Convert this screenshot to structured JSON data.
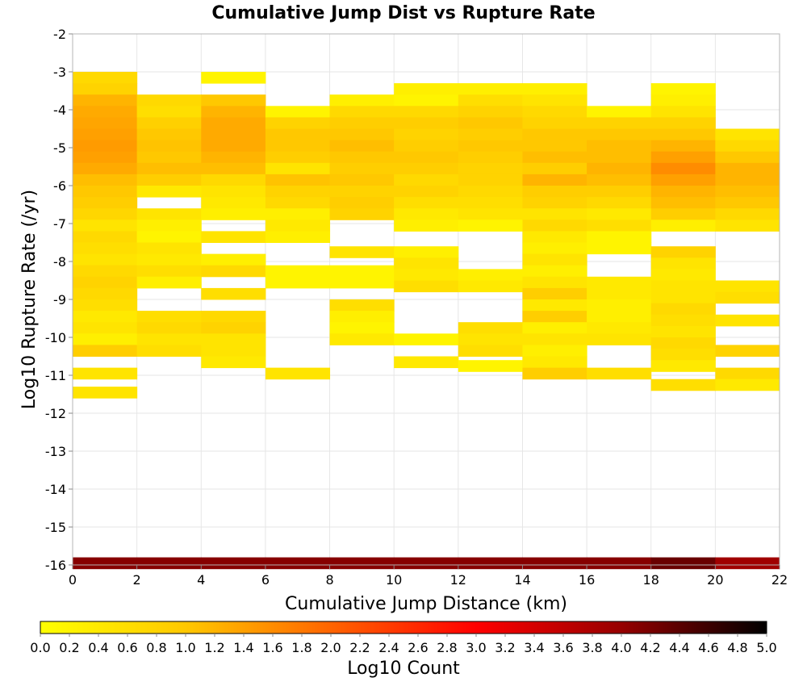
{
  "chart_data": {
    "type": "heatmap",
    "title": "Cumulative Jump Dist vs Rupture Rate",
    "xlabel": "Cumulative Jump Distance (km)",
    "ylabel": "Log10 Rupture Rate (/yr)",
    "xlim": [
      0,
      22
    ],
    "ylim": [
      -16,
      -2
    ],
    "x_ticks": [
      "0",
      "2",
      "4",
      "6",
      "8",
      "10",
      "12",
      "14",
      "16",
      "18",
      "20",
      "22"
    ],
    "y_ticks": [
      "-2",
      "-3",
      "-4",
      "-5",
      "-6",
      "-7",
      "-8",
      "-9",
      "-10",
      "-11",
      "-12",
      "-13",
      "-14",
      "-15",
      "-16"
    ],
    "grid": true,
    "x_bin_width": 2,
    "y_bin_height": 0.3,
    "x_bin_starts": [
      0,
      2,
      4,
      6,
      8,
      10,
      12,
      14,
      16,
      18,
      20
    ],
    "colorbar": {
      "label": "Log10 Count",
      "range": [
        0.0,
        5.0
      ],
      "ticks": [
        "0.0",
        "0.2",
        "0.4",
        "0.6",
        "0.8",
        "1.0",
        "1.2",
        "1.4",
        "1.6",
        "1.8",
        "2.0",
        "2.2",
        "2.4",
        "2.6",
        "2.8",
        "3.0",
        "3.2",
        "3.4",
        "3.6",
        "3.8",
        "4.0",
        "4.2",
        "4.4",
        "4.6",
        "4.8",
        "5.0"
      ],
      "colors": [
        "#ffff00",
        "#ffc800",
        "#ff6400",
        "#ff0000",
        "#960000",
        "#000000"
      ]
    },
    "columns": [
      {
        "x": 0,
        "cells": [
          [
            -3.15,
            0.7
          ],
          [
            -3.45,
            0.8
          ],
          [
            -3.75,
            1.2
          ],
          [
            -4.05,
            1.3
          ],
          [
            -4.35,
            1.35
          ],
          [
            -4.65,
            1.4
          ],
          [
            -4.95,
            1.45
          ],
          [
            -5.25,
            1.4
          ],
          [
            -5.55,
            1.3
          ],
          [
            -5.85,
            1.1
          ],
          [
            -6.15,
            1.0
          ],
          [
            -6.45,
            0.9
          ],
          [
            -6.75,
            0.75
          ],
          [
            -7.05,
            0.5
          ],
          [
            -7.35,
            0.7
          ],
          [
            -7.65,
            0.6
          ],
          [
            -7.95,
            0.5
          ],
          [
            -8.25,
            0.7
          ],
          [
            -8.55,
            0.8
          ],
          [
            -8.85,
            0.7
          ],
          [
            -9.15,
            0.6
          ],
          [
            -9.45,
            0.4
          ],
          [
            -9.75,
            0.5
          ],
          [
            -10.05,
            0.3
          ],
          [
            -10.35,
            0.9
          ],
          [
            -10.95,
            0.5
          ],
          [
            -11.45,
            0.5
          ],
          [
            -15.95,
            4.1
          ]
        ]
      },
      {
        "x": 2,
        "cells": [
          [
            -3.75,
            0.7
          ],
          [
            -4.05,
            0.6
          ],
          [
            -4.35,
            0.85
          ],
          [
            -4.65,
            1.0
          ],
          [
            -4.95,
            1.05
          ],
          [
            -5.25,
            1.0
          ],
          [
            -5.55,
            1.1
          ],
          [
            -5.85,
            0.9
          ],
          [
            -6.15,
            0.4
          ],
          [
            -6.75,
            0.5
          ],
          [
            -7.05,
            0.3
          ],
          [
            -7.35,
            0.2
          ],
          [
            -7.65,
            0.5
          ],
          [
            -7.95,
            0.4
          ],
          [
            -8.25,
            0.6
          ],
          [
            -8.55,
            0.3
          ],
          [
            -9.45,
            0.6
          ],
          [
            -9.75,
            0.7
          ],
          [
            -10.05,
            0.5
          ],
          [
            -10.35,
            0.6
          ],
          [
            -15.95,
            4.1
          ]
        ]
      },
      {
        "x": 4,
        "cells": [
          [
            -3.15,
            0.2
          ],
          [
            -3.75,
            1.0
          ],
          [
            -4.05,
            1.2
          ],
          [
            -4.35,
            1.3
          ],
          [
            -4.65,
            1.3
          ],
          [
            -4.95,
            1.3
          ],
          [
            -5.25,
            1.2
          ],
          [
            -5.55,
            1.1
          ],
          [
            -5.85,
            0.7
          ],
          [
            -6.15,
            0.5
          ],
          [
            -6.45,
            0.4
          ],
          [
            -6.75,
            0.3
          ],
          [
            -7.35,
            0.5
          ],
          [
            -7.95,
            0.3
          ],
          [
            -8.25,
            0.7
          ],
          [
            -8.85,
            0.6
          ],
          [
            -9.45,
            0.7
          ],
          [
            -9.75,
            0.8
          ],
          [
            -10.05,
            0.5
          ],
          [
            -10.35,
            0.5
          ],
          [
            -10.65,
            0.4
          ],
          [
            -15.95,
            4.1
          ]
        ]
      },
      {
        "x": 6,
        "cells": [
          [
            -4.05,
            0.2
          ],
          [
            -4.35,
            0.8
          ],
          [
            -4.65,
            1.0
          ],
          [
            -4.95,
            1.0
          ],
          [
            -5.25,
            0.9
          ],
          [
            -5.55,
            0.5
          ],
          [
            -5.85,
            1.05
          ],
          [
            -6.15,
            0.8
          ],
          [
            -6.45,
            0.7
          ],
          [
            -6.75,
            0.3
          ],
          [
            -7.05,
            0.4
          ],
          [
            -7.35,
            0.3
          ],
          [
            -8.25,
            0.2
          ],
          [
            -8.55,
            0.2
          ],
          [
            -10.95,
            0.5
          ],
          [
            -15.95,
            4.1
          ]
        ]
      },
      {
        "x": 8,
        "cells": [
          [
            -3.75,
            0.3
          ],
          [
            -4.05,
            0.7
          ],
          [
            -4.35,
            0.9
          ],
          [
            -4.65,
            1.0
          ],
          [
            -4.95,
            1.1
          ],
          [
            -5.25,
            1.0
          ],
          [
            -5.55,
            0.9
          ],
          [
            -5.85,
            1.0
          ],
          [
            -6.15,
            0.8
          ],
          [
            -6.45,
            0.9
          ],
          [
            -6.75,
            0.8
          ],
          [
            -7.75,
            0.5
          ],
          [
            -8.25,
            0.2
          ],
          [
            -8.55,
            0.2
          ],
          [
            -9.15,
            0.6
          ],
          [
            -9.45,
            0.3
          ],
          [
            -9.75,
            0.2
          ],
          [
            -10.05,
            0.4
          ],
          [
            -15.95,
            4.1
          ]
        ]
      },
      {
        "x": 10,
        "cells": [
          [
            -3.45,
            0.3
          ],
          [
            -3.75,
            0.2
          ],
          [
            -4.05,
            0.7
          ],
          [
            -4.35,
            0.9
          ],
          [
            -4.65,
            0.8
          ],
          [
            -4.95,
            0.9
          ],
          [
            -5.25,
            1.0
          ],
          [
            -5.55,
            0.9
          ],
          [
            -5.85,
            0.7
          ],
          [
            -6.15,
            0.8
          ],
          [
            -6.45,
            0.6
          ],
          [
            -6.75,
            0.4
          ],
          [
            -7.05,
            0.3
          ],
          [
            -7.75,
            0.3
          ],
          [
            -8.05,
            0.5
          ],
          [
            -8.35,
            0.4
          ],
          [
            -8.65,
            0.6
          ],
          [
            -10.05,
            0.2
          ],
          [
            -10.65,
            0.4
          ],
          [
            -15.95,
            4.1
          ]
        ]
      },
      {
        "x": 12,
        "cells": [
          [
            -3.45,
            0.3
          ],
          [
            -3.75,
            0.6
          ],
          [
            -4.05,
            0.8
          ],
          [
            -4.35,
            1.0
          ],
          [
            -4.65,
            0.9
          ],
          [
            -4.95,
            1.0
          ],
          [
            -5.25,
            0.9
          ],
          [
            -5.55,
            0.8
          ],
          [
            -5.85,
            0.8
          ],
          [
            -6.15,
            0.7
          ],
          [
            -6.45,
            0.6
          ],
          [
            -6.75,
            0.5
          ],
          [
            -7.05,
            0.2
          ],
          [
            -8.35,
            0.3
          ],
          [
            -8.65,
            0.4
          ],
          [
            -9.75,
            0.6
          ],
          [
            -10.05,
            0.5
          ],
          [
            -10.35,
            0.6
          ],
          [
            -10.75,
            0.2
          ],
          [
            -15.95,
            4.1
          ]
        ]
      },
      {
        "x": 14,
        "cells": [
          [
            -3.45,
            0.3
          ],
          [
            -3.75,
            0.5
          ],
          [
            -4.05,
            0.7
          ],
          [
            -4.35,
            0.8
          ],
          [
            -4.65,
            1.0
          ],
          [
            -4.95,
            1.0
          ],
          [
            -5.25,
            1.1
          ],
          [
            -5.55,
            0.9
          ],
          [
            -5.85,
            1.2
          ],
          [
            -6.15,
            0.9
          ],
          [
            -6.45,
            0.8
          ],
          [
            -6.75,
            0.5
          ],
          [
            -7.05,
            0.7
          ],
          [
            -7.35,
            0.4
          ],
          [
            -7.65,
            0.3
          ],
          [
            -7.95,
            0.5
          ],
          [
            -8.25,
            0.3
          ],
          [
            -8.55,
            0.5
          ],
          [
            -8.85,
            0.9
          ],
          [
            -9.15,
            0.4
          ],
          [
            -9.45,
            0.9
          ],
          [
            -9.75,
            0.3
          ],
          [
            -10.05,
            0.5
          ],
          [
            -10.35,
            0.3
          ],
          [
            -10.65,
            0.4
          ],
          [
            -10.95,
            0.9
          ],
          [
            -15.95,
            4.1
          ]
        ]
      },
      {
        "x": 16,
        "cells": [
          [
            -4.05,
            0.2
          ],
          [
            -4.35,
            0.8
          ],
          [
            -4.65,
            1.0
          ],
          [
            -4.95,
            1.1
          ],
          [
            -5.25,
            1.1
          ],
          [
            -5.55,
            1.2
          ],
          [
            -5.85,
            1.1
          ],
          [
            -6.15,
            0.9
          ],
          [
            -6.45,
            0.7
          ],
          [
            -6.75,
            0.4
          ],
          [
            -7.05,
            0.6
          ],
          [
            -7.35,
            0.2
          ],
          [
            -7.65,
            0.2
          ],
          [
            -8.55,
            0.4
          ],
          [
            -8.85,
            0.4
          ],
          [
            -9.15,
            0.3
          ],
          [
            -9.45,
            0.3
          ],
          [
            -9.75,
            0.4
          ],
          [
            -10.05,
            0.5
          ],
          [
            -10.95,
            0.6
          ],
          [
            -15.95,
            4.1
          ]
        ]
      },
      {
        "x": 18,
        "cells": [
          [
            -3.45,
            0.2
          ],
          [
            -3.75,
            0.3
          ],
          [
            -4.05,
            0.5
          ],
          [
            -4.35,
            0.8
          ],
          [
            -4.65,
            1.0
          ],
          [
            -4.95,
            1.2
          ],
          [
            -5.25,
            1.4
          ],
          [
            -5.55,
            1.6
          ],
          [
            -5.85,
            1.4
          ],
          [
            -6.15,
            1.2
          ],
          [
            -6.45,
            1.1
          ],
          [
            -6.75,
            0.9
          ],
          [
            -7.05,
            0.3
          ],
          [
            -7.75,
            0.8
          ],
          [
            -8.05,
            0.5
          ],
          [
            -8.35,
            0.4
          ],
          [
            -8.65,
            0.5
          ],
          [
            -8.95,
            0.5
          ],
          [
            -9.25,
            0.7
          ],
          [
            -9.55,
            0.6
          ],
          [
            -9.85,
            0.5
          ],
          [
            -10.15,
            0.7
          ],
          [
            -10.45,
            0.6
          ],
          [
            -10.75,
            0.4
          ],
          [
            -11.25,
            0.6
          ],
          [
            -15.95,
            4.3
          ]
        ]
      },
      {
        "x": 20,
        "cells": [
          [
            -4.65,
            0.5
          ],
          [
            -4.95,
            0.7
          ],
          [
            -5.25,
            1.0
          ],
          [
            -5.55,
            1.2
          ],
          [
            -5.85,
            1.2
          ],
          [
            -6.15,
            1.1
          ],
          [
            -6.45,
            1.0
          ],
          [
            -6.75,
            0.7
          ],
          [
            -7.05,
            0.5
          ],
          [
            -8.65,
            0.5
          ],
          [
            -8.95,
            0.6
          ],
          [
            -9.55,
            0.5
          ],
          [
            -10.35,
            0.8
          ],
          [
            -10.95,
            0.7
          ],
          [
            -11.25,
            0.4
          ],
          [
            -15.95,
            3.9
          ]
        ]
      }
    ]
  }
}
